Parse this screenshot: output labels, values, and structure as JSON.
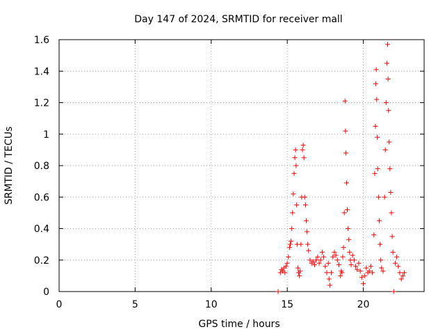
{
  "chart_data": {
    "type": "scatter",
    "title": "Day 147 of 2024, SRMTID for receiver mall",
    "xlabel": "GPS time / hours",
    "ylabel": "SRMTID / TECUs",
    "xlim": [
      0,
      24
    ],
    "ylim": [
      0,
      1.6
    ],
    "xticks": [
      0,
      5,
      10,
      15,
      20
    ],
    "xtick_labels": [
      "0",
      "5",
      "10",
      "15",
      "20"
    ],
    "yticks": [
      0,
      0.2,
      0.4,
      0.6,
      0.8,
      1.0,
      1.2,
      1.4,
      1.6
    ],
    "ytick_labels": [
      "0",
      "0.2",
      "0.4",
      "0.6",
      "0.8",
      "1",
      "1.2",
      "1.4",
      "1.6"
    ],
    "grid": true,
    "marker": "+",
    "colors": {
      "series": "#ff0000",
      "grid": "#a0a0a0",
      "axis": "#000000"
    },
    "series": [
      {
        "name": "SRMTID",
        "points": [
          [
            14.4,
            0.0
          ],
          [
            14.55,
            0.12
          ],
          [
            14.62,
            0.14
          ],
          [
            14.7,
            0.13
          ],
          [
            14.78,
            0.15
          ],
          [
            14.85,
            0.12
          ],
          [
            14.92,
            0.16
          ],
          [
            15.0,
            0.18
          ],
          [
            15.08,
            0.22
          ],
          [
            15.15,
            0.28
          ],
          [
            15.2,
            0.3
          ],
          [
            15.25,
            0.32
          ],
          [
            15.3,
            0.4
          ],
          [
            15.35,
            0.5
          ],
          [
            15.4,
            0.62
          ],
          [
            15.45,
            0.75
          ],
          [
            15.5,
            0.85
          ],
          [
            15.55,
            0.9
          ],
          [
            15.58,
            0.8
          ],
          [
            15.62,
            0.55
          ],
          [
            15.65,
            0.3
          ],
          [
            15.7,
            0.15
          ],
          [
            15.75,
            0.12
          ],
          [
            15.8,
            0.1
          ],
          [
            15.85,
            0.13
          ],
          [
            15.9,
            0.3
          ],
          [
            15.95,
            0.6
          ],
          [
            16.0,
            0.9
          ],
          [
            16.05,
            0.93
          ],
          [
            16.1,
            0.85
          ],
          [
            16.15,
            0.6
          ],
          [
            16.2,
            0.55
          ],
          [
            16.25,
            0.45
          ],
          [
            16.3,
            0.38
          ],
          [
            16.35,
            0.3
          ],
          [
            16.4,
            0.26
          ],
          [
            16.5,
            0.2
          ],
          [
            16.6,
            0.18
          ],
          [
            16.7,
            0.19
          ],
          [
            16.8,
            0.17
          ],
          [
            16.9,
            0.2
          ],
          [
            17.0,
            0.22
          ],
          [
            17.1,
            0.18
          ],
          [
            17.2,
            0.2
          ],
          [
            17.3,
            0.25
          ],
          [
            17.4,
            0.22
          ],
          [
            17.5,
            0.16
          ],
          [
            17.6,
            0.12
          ],
          [
            17.7,
            0.18
          ],
          [
            17.75,
            0.08
          ],
          [
            17.8,
            0.04
          ],
          [
            17.9,
            0.12
          ],
          [
            18.0,
            0.22
          ],
          [
            18.1,
            0.25
          ],
          [
            18.2,
            0.23
          ],
          [
            18.3,
            0.2
          ],
          [
            18.4,
            0.17
          ],
          [
            18.5,
            0.1
          ],
          [
            18.55,
            0.13
          ],
          [
            18.6,
            0.12
          ],
          [
            18.65,
            0.22
          ],
          [
            18.7,
            0.28
          ],
          [
            18.75,
            0.5
          ],
          [
            18.8,
            1.21
          ],
          [
            18.83,
            1.02
          ],
          [
            18.86,
            0.88
          ],
          [
            18.9,
            0.69
          ],
          [
            18.95,
            0.52
          ],
          [
            19.0,
            0.4
          ],
          [
            19.05,
            0.33
          ],
          [
            19.1,
            0.25
          ],
          [
            19.15,
            0.2
          ],
          [
            19.2,
            0.17
          ],
          [
            19.3,
            0.23
          ],
          [
            19.4,
            0.2
          ],
          [
            19.5,
            0.16
          ],
          [
            19.6,
            0.14
          ],
          [
            19.7,
            0.18
          ],
          [
            19.8,
            0.13
          ],
          [
            19.9,
            0.09
          ],
          [
            20.0,
            0.05
          ],
          [
            20.1,
            0.1
          ],
          [
            20.2,
            0.15
          ],
          [
            20.3,
            0.12
          ],
          [
            20.4,
            0.13
          ],
          [
            20.5,
            0.16
          ],
          [
            20.6,
            0.12
          ],
          [
            20.7,
            0.36
          ],
          [
            20.75,
            0.75
          ],
          [
            20.8,
            1.05
          ],
          [
            20.82,
            1.32
          ],
          [
            20.85,
            1.41
          ],
          [
            20.88,
            1.22
          ],
          [
            20.92,
            0.98
          ],
          [
            20.95,
            0.78
          ],
          [
            21.0,
            0.6
          ],
          [
            21.05,
            0.45
          ],
          [
            21.1,
            0.3
          ],
          [
            21.15,
            0.2
          ],
          [
            21.2,
            0.15
          ],
          [
            21.3,
            0.13
          ],
          [
            21.4,
            0.6
          ],
          [
            21.45,
            0.9
          ],
          [
            21.5,
            1.2
          ],
          [
            21.55,
            1.45
          ],
          [
            21.6,
            1.57
          ],
          [
            21.63,
            1.35
          ],
          [
            21.66,
            1.15
          ],
          [
            21.7,
            0.95
          ],
          [
            21.75,
            0.78
          ],
          [
            21.8,
            0.63
          ],
          [
            21.85,
            0.5
          ],
          [
            21.9,
            0.35
          ],
          [
            21.95,
            0.25
          ],
          [
            22.0,
            0.0
          ],
          [
            22.1,
            0.18
          ],
          [
            22.2,
            0.22
          ],
          [
            22.3,
            0.16
          ],
          [
            22.4,
            0.12
          ],
          [
            22.5,
            0.08
          ],
          [
            22.6,
            0.1
          ],
          [
            22.7,
            0.12
          ]
        ]
      }
    ]
  }
}
